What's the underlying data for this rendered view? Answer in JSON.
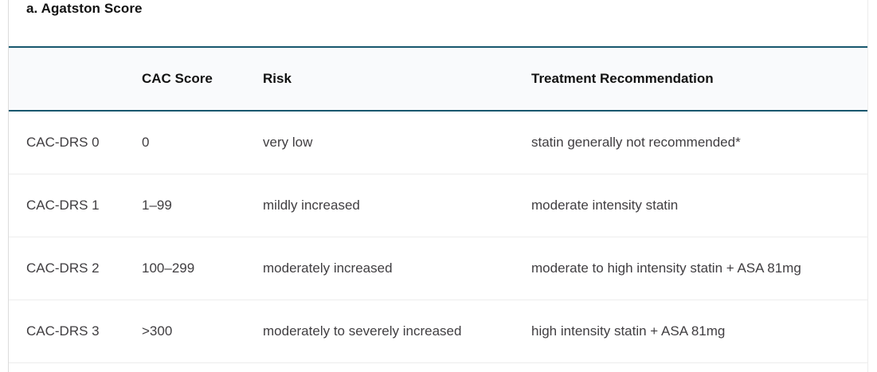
{
  "table": {
    "title": "a. Agatston Score",
    "columns": [
      "",
      "CAC Score",
      "Risk",
      "Treatment Recommendation"
    ],
    "rows": [
      {
        "label": "CAC-DRS 0",
        "cac_score": "0",
        "risk": "very low",
        "treatment": "statin generally not recommended*"
      },
      {
        "label": "CAC-DRS 1",
        "cac_score": "1–99",
        "risk": "mildly increased",
        "treatment": "moderate intensity statin"
      },
      {
        "label": "CAC-DRS 2",
        "cac_score": "100–299",
        "risk": "moderately increased",
        "treatment": "moderate to high intensity statin + ASA 81mg"
      },
      {
        "label": "CAC-DRS 3",
        "cac_score": ">300",
        "risk": "moderately to severely increased",
        "treatment": "high intensity statin + ASA 81mg"
      }
    ],
    "colors": {
      "accent_rule": "#17576e",
      "header_background": "#f9fafc",
      "row_separator": "#ededed",
      "side_border": "#dcdcdc",
      "heading_text": "#121212",
      "body_text": "#403e41"
    }
  }
}
